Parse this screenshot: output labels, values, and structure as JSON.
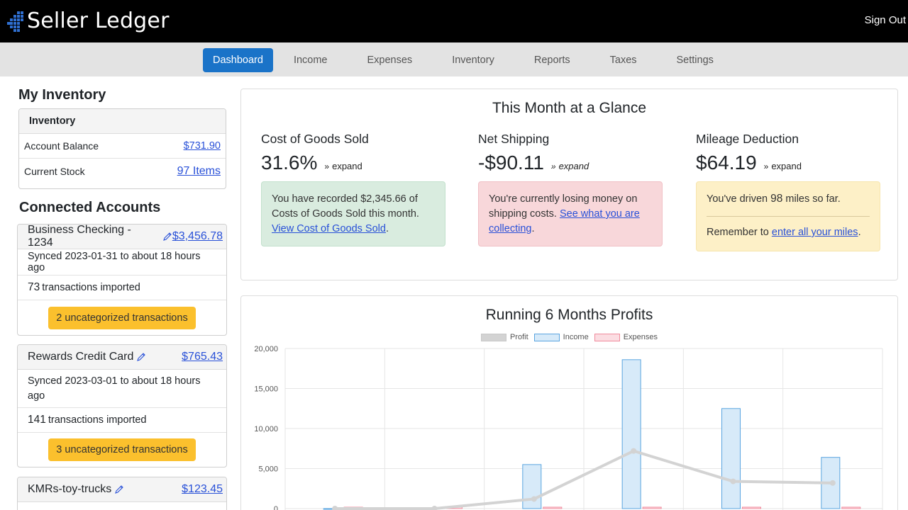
{
  "app": {
    "title": "Seller Ledger",
    "sign_out": "Sign Out"
  },
  "nav": {
    "items": [
      "Dashboard",
      "Income",
      "Expenses",
      "Inventory",
      "Reports",
      "Taxes",
      "Settings"
    ],
    "active": "Dashboard"
  },
  "inventory": {
    "heading": "My Inventory",
    "card_title": "Inventory",
    "rows": [
      {
        "label": "Account Balance",
        "value": "$731.90"
      },
      {
        "label": "Current Stock",
        "value": "97 Items"
      }
    ]
  },
  "accounts": {
    "heading": "Connected Accounts",
    "items": [
      {
        "name": "Business Checking - 1234",
        "balance": "$3,456.78",
        "synced": "Synced 2023-01-31 to about 18 hours ago",
        "count": "73",
        "imported_text": "transactions imported",
        "uncategorized": "2 uncategorized transactions"
      },
      {
        "name": "Rewards Credit Card",
        "balance": "$765.43",
        "synced": "Synced 2023-03-01 to about 18 hours ago",
        "count": "141",
        "imported_text": "transactions imported",
        "uncategorized": "3 uncategorized transactions"
      },
      {
        "name": "KMRs-toy-trucks",
        "balance": "$123.45"
      }
    ]
  },
  "glance": {
    "title": "This Month at a Glance",
    "expand_label": "expand",
    "cogs": {
      "label": "Cost of Goods Sold",
      "value": "31.6%",
      "text_a": "You have recorded $2,345.66 of Costs of Goods Sold this month.",
      "link": "View Cost of Goods Sold",
      "text_b": "."
    },
    "shipping": {
      "label": "Net Shipping",
      "value": "-$90.11",
      "text_a": "You're currently losing money on shipping costs.",
      "link": "See what you are collecting",
      "text_b": "."
    },
    "mileage": {
      "label": "Mileage Deduction",
      "value": "$64.19",
      "line1_a": "You've driven",
      "miles": "98",
      "line1_b": "miles so far.",
      "line2_a": "Remember to",
      "link": "enter all your miles",
      "line2_b": "."
    }
  },
  "colors": {
    "accent": "#1a73c8",
    "uncategorized_button": "#fbc02d",
    "profit": "#d3d3d3",
    "income": "#bcdcf5",
    "expenses": "#f8c3cc"
  },
  "chart_data": {
    "type": "bar",
    "title": "Running 6 Months Profits",
    "y_ticks": [
      "20,000",
      "15,000",
      "10,000",
      "5,000",
      "0"
    ],
    "ylim": [
      0,
      20000
    ],
    "grid": true,
    "legend_position": "top",
    "categories": [
      "",
      "",
      "",
      "",
      "",
      ""
    ],
    "series": [
      {
        "name": "Profit",
        "kind": "line",
        "values": [
          0,
          0,
          1200,
          7200,
          3400,
          3200
        ]
      },
      {
        "name": "Income",
        "kind": "bar",
        "values": [
          0,
          100,
          5500,
          18600,
          12500,
          6400
        ]
      },
      {
        "name": "Expenses",
        "kind": "bar",
        "values": [
          0,
          0,
          0,
          0,
          0,
          0
        ]
      }
    ]
  }
}
